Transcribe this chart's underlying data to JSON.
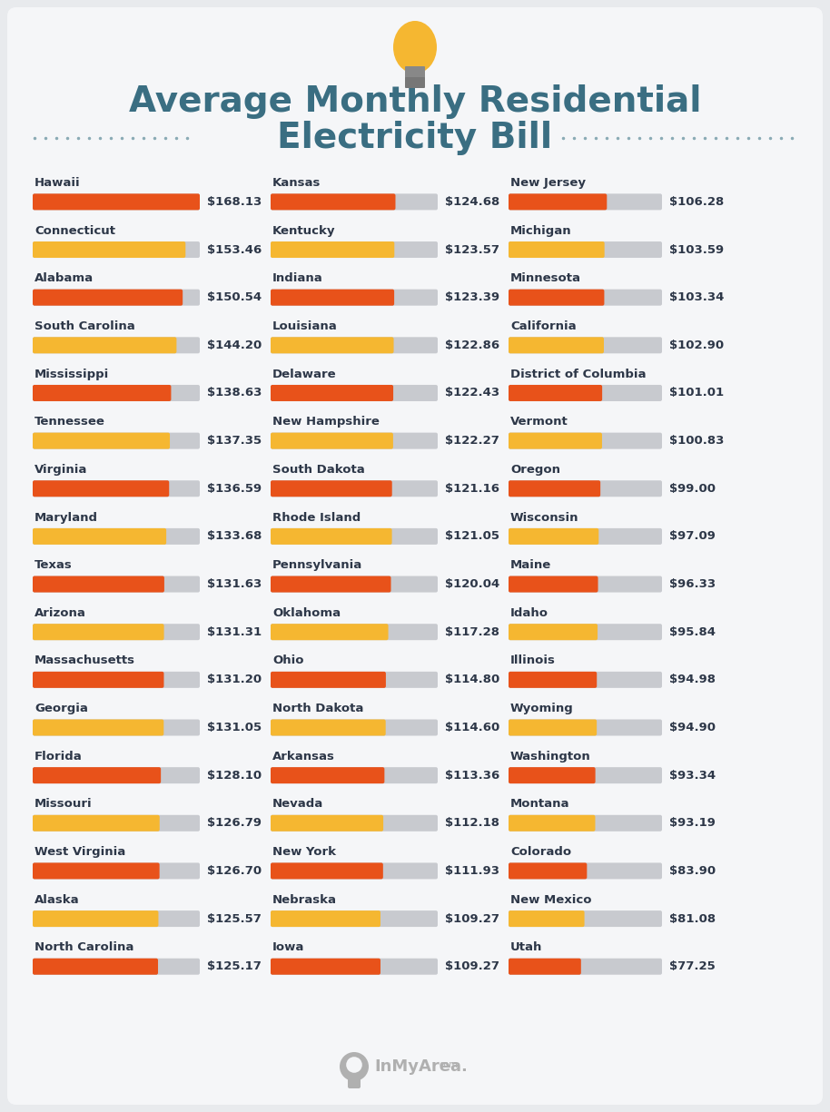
{
  "title_line1": "Average Monthly Residential",
  "title_line2": "Electricity Bill",
  "title_color": "#3a6e82",
  "background_color": "#e8eaed",
  "card_color": "#f5f6f8",
  "col1": [
    {
      "state": "Hawaii",
      "value": 168.13,
      "color": "#e8521a"
    },
    {
      "state": "Connecticut",
      "value": 153.46,
      "color": "#f5b731"
    },
    {
      "state": "Alabama",
      "value": 150.54,
      "color": "#e8521a"
    },
    {
      "state": "South Carolina",
      "value": 144.2,
      "color": "#f5b731"
    },
    {
      "state": "Mississippi",
      "value": 138.63,
      "color": "#e8521a"
    },
    {
      "state": "Tennessee",
      "value": 137.35,
      "color": "#f5b731"
    },
    {
      "state": "Virginia",
      "value": 136.59,
      "color": "#e8521a"
    },
    {
      "state": "Maryland",
      "value": 133.68,
      "color": "#f5b731"
    },
    {
      "state": "Texas",
      "value": 131.63,
      "color": "#e8521a"
    },
    {
      "state": "Arizona",
      "value": 131.31,
      "color": "#f5b731"
    },
    {
      "state": "Massachusetts",
      "value": 131.2,
      "color": "#e8521a"
    },
    {
      "state": "Georgia",
      "value": 131.05,
      "color": "#f5b731"
    },
    {
      "state": "Florida",
      "value": 128.1,
      "color": "#e8521a"
    },
    {
      "state": "Missouri",
      "value": 126.79,
      "color": "#f5b731"
    },
    {
      "state": "West Virginia",
      "value": 126.7,
      "color": "#e8521a"
    },
    {
      "state": "Alaska",
      "value": 125.57,
      "color": "#f5b731"
    },
    {
      "state": "North Carolina",
      "value": 125.17,
      "color": "#e8521a"
    }
  ],
  "col2": [
    {
      "state": "Kansas",
      "value": 124.68,
      "color": "#e8521a"
    },
    {
      "state": "Kentucky",
      "value": 123.57,
      "color": "#f5b731"
    },
    {
      "state": "Indiana",
      "value": 123.39,
      "color": "#e8521a"
    },
    {
      "state": "Louisiana",
      "value": 122.86,
      "color": "#f5b731"
    },
    {
      "state": "Delaware",
      "value": 122.43,
      "color": "#e8521a"
    },
    {
      "state": "New Hampshire",
      "value": 122.27,
      "color": "#f5b731"
    },
    {
      "state": "South Dakota",
      "value": 121.16,
      "color": "#e8521a"
    },
    {
      "state": "Rhode Island",
      "value": 121.05,
      "color": "#f5b731"
    },
    {
      "state": "Pennsylvania",
      "value": 120.04,
      "color": "#e8521a"
    },
    {
      "state": "Oklahoma",
      "value": 117.28,
      "color": "#f5b731"
    },
    {
      "state": "Ohio",
      "value": 114.8,
      "color": "#e8521a"
    },
    {
      "state": "North Dakota",
      "value": 114.6,
      "color": "#f5b731"
    },
    {
      "state": "Arkansas",
      "value": 113.36,
      "color": "#e8521a"
    },
    {
      "state": "Nevada",
      "value": 112.18,
      "color": "#f5b731"
    },
    {
      "state": "New York",
      "value": 111.93,
      "color": "#e8521a"
    },
    {
      "state": "Nebraska",
      "value": 109.27,
      "color": "#f5b731"
    },
    {
      "state": "Iowa",
      "value": 109.27,
      "color": "#e8521a"
    }
  ],
  "col3": [
    {
      "state": "New Jersey",
      "value": 106.28,
      "color": "#e8521a"
    },
    {
      "state": "Michigan",
      "value": 103.59,
      "color": "#f5b731"
    },
    {
      "state": "Minnesota",
      "value": 103.34,
      "color": "#e8521a"
    },
    {
      "state": "California",
      "value": 102.9,
      "color": "#f5b731"
    },
    {
      "state": "District of Columbia",
      "value": 101.01,
      "color": "#e8521a"
    },
    {
      "state": "Vermont",
      "value": 100.83,
      "color": "#f5b731"
    },
    {
      "state": "Oregon",
      "value": 99.0,
      "color": "#e8521a"
    },
    {
      "state": "Wisconsin",
      "value": 97.09,
      "color": "#f5b731"
    },
    {
      "state": "Maine",
      "value": 96.33,
      "color": "#e8521a"
    },
    {
      "state": "Idaho",
      "value": 95.84,
      "color": "#f5b731"
    },
    {
      "state": "Illinois",
      "value": 94.98,
      "color": "#e8521a"
    },
    {
      "state": "Wyoming",
      "value": 94.9,
      "color": "#f5b731"
    },
    {
      "state": "Washington",
      "value": 93.34,
      "color": "#e8521a"
    },
    {
      "state": "Montana",
      "value": 93.19,
      "color": "#f5b731"
    },
    {
      "state": "Colorado",
      "value": 83.9,
      "color": "#e8521a"
    },
    {
      "state": "New Mexico",
      "value": 81.08,
      "color": "#f5b731"
    },
    {
      "state": "Utah",
      "value": 77.25,
      "color": "#e8521a"
    }
  ],
  "bar_bg_color": "#c8cacf",
  "max_value": 168.13,
  "value_color": "#2d3748",
  "state_color": "#2d3748",
  "dot_color": "#8aabb5"
}
